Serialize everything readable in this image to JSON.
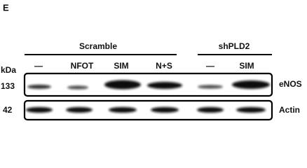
{
  "panel_label": "E",
  "groups": [
    {
      "label": "Scramble"
    },
    {
      "label": "shPLD2"
    }
  ],
  "lanes": [
    "—",
    "NFOT",
    "SIM",
    "N+S",
    "—",
    "SIM"
  ],
  "kda_label": "kDa",
  "rows": [
    {
      "marker": "133",
      "label": "eNOS"
    },
    {
      "marker": "42",
      "label": "Actin"
    }
  ]
}
